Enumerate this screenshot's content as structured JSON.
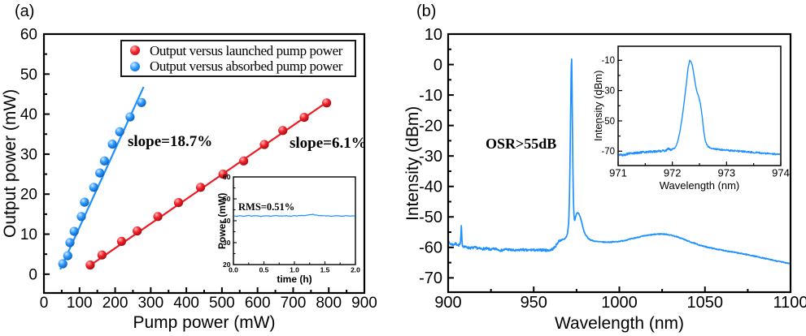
{
  "panel_a": {
    "label": "(a)"
  },
  "panel_b": {
    "label": "(b)"
  },
  "colors": {
    "red": "#ed1c24",
    "blue": "#1e90ff",
    "axis": "#000000",
    "background": "#ffffff"
  },
  "chart_data": [
    {
      "id": "a_main",
      "type": "scatter",
      "xlabel": "Pump power (mW)",
      "ylabel": "Output power (mW)",
      "xlim": [
        0,
        900
      ],
      "ylim": [
        0,
        60
      ],
      "x_ticks": [
        0,
        100,
        200,
        300,
        400,
        500,
        600,
        700,
        800,
        900
      ],
      "y_ticks": [
        0,
        10,
        20,
        30,
        40,
        50,
        60
      ],
      "grid": false,
      "legend_position": "top-center-inside",
      "legend": {
        "entries": [
          {
            "label": "Output versus launched pump power",
            "color": "red"
          },
          {
            "label": "Output versus absorbed pump power",
            "color": "blue"
          }
        ]
      },
      "annotations": [
        {
          "text": "slope=18.7%",
          "series": "absorbed"
        },
        {
          "text": "slope=6.1%",
          "series": "launched"
        }
      ],
      "series": [
        {
          "name": "Output versus launched pump power",
          "color": "red",
          "fit": [
            [
              122,
              1.7
            ],
            [
              800,
              43.3
            ]
          ],
          "points": [
            [
              130,
              2.3
            ],
            [
              163,
              4.8
            ],
            [
              218,
              8.2
            ],
            [
              262,
              10.8
            ],
            [
              320,
              14.4
            ],
            [
              378,
              17.9
            ],
            [
              440,
              21.7
            ],
            [
              503,
              25.0
            ],
            [
              561,
              28.3
            ],
            [
              619,
              32.4
            ],
            [
              671,
              35.9
            ],
            [
              731,
              39.2
            ],
            [
              794,
              42.8
            ]
          ]
        },
        {
          "name": "Output versus absorbed pump power",
          "color": "blue",
          "fit": [
            [
              46,
              1.2
            ],
            [
              280,
              46.8
            ]
          ],
          "points": [
            [
              53,
              2.6
            ],
            [
              67,
              4.6
            ],
            [
              73,
              7.9
            ],
            [
              85,
              10.7
            ],
            [
              105,
              14.4
            ],
            [
              114,
              18.0
            ],
            [
              140,
              21.7
            ],
            [
              157,
              25.3
            ],
            [
              170,
              28.3
            ],
            [
              192,
              32.5
            ],
            [
              213,
              35.6
            ],
            [
              242,
              39.3
            ],
            [
              274,
              42.9
            ]
          ]
        }
      ]
    },
    {
      "id": "a_inset",
      "type": "line",
      "xlabel": "time (h)",
      "ylabel": "Power (mW)",
      "annotation": "RMS=0.51%",
      "xlim": [
        0,
        2
      ],
      "ylim": [
        20,
        60
      ],
      "x_ticks": [
        "0.0",
        "0.5",
        "1.0",
        "1.5",
        "2.0"
      ],
      "y_ticks": [
        20,
        30,
        40,
        50,
        60
      ],
      "x_start": 0,
      "x_step": 0.05,
      "values": [
        42.2,
        42.0,
        42.3,
        42.1,
        42.2,
        42.4,
        42.1,
        42.3,
        42.2,
        42.0,
        42.2,
        42.3,
        42.1,
        42.2,
        42.4,
        42.2,
        42.1,
        42.3,
        42.2,
        42.1,
        42.3,
        42.2,
        42.4,
        42.3,
        42.5,
        42.8,
        42.9,
        42.6,
        42.4,
        42.3,
        42.2,
        42.3,
        42.1,
        42.2,
        42.3,
        42.2,
        42.1,
        42.3,
        42.2,
        42.2,
        42.1
      ],
      "noise": [
        [
          2.2,
          0.12
        ]
      ]
    },
    {
      "id": "b_main",
      "type": "line",
      "xlabel": "Wavelength (nm)",
      "ylabel": "Intensity (dBm)",
      "annotation": "OSR>55dB",
      "xlim": [
        900,
        1100
      ],
      "ylim": [
        -70,
        10
      ],
      "x_ticks": [
        900,
        950,
        1000,
        1050,
        1100
      ],
      "y_ticks": [
        10,
        0,
        -10,
        -20,
        -30,
        -40,
        -50,
        -60,
        -70
      ],
      "peak_wavelength_nm": 972,
      "peak_intensity_dbm": 2,
      "trace": [
        [
          900,
          -58.2
        ],
        [
          901.5,
          -58.9
        ],
        [
          903,
          -59.1
        ],
        [
          904.5,
          -58.8
        ],
        [
          906,
          -59.3
        ],
        [
          907.2,
          -58.9
        ],
        [
          907.7,
          -53.2
        ],
        [
          908.3,
          -59.4
        ],
        [
          910,
          -59.9
        ],
        [
          913,
          -60.2
        ],
        [
          916,
          -60.1
        ],
        [
          919,
          -60.5
        ],
        [
          922,
          -60.4
        ],
        [
          925,
          -60.7
        ],
        [
          928,
          -60.5
        ],
        [
          931,
          -61.0
        ],
        [
          934,
          -60.6
        ],
        [
          937,
          -60.9
        ],
        [
          940,
          -61.1
        ],
        [
          943,
          -60.7
        ],
        [
          946,
          -61.0
        ],
        [
          949,
          -60.8
        ],
        [
          952,
          -61.0
        ],
        [
          955,
          -60.8
        ],
        [
          958,
          -61.0
        ],
        [
          960,
          -60.8
        ],
        [
          961.5,
          -60.4
        ],
        [
          963,
          -59.4
        ],
        [
          964,
          -58.4
        ],
        [
          965,
          -57.8
        ],
        [
          966.5,
          -57.5
        ],
        [
          968,
          -57.2
        ],
        [
          969,
          -56.6
        ],
        [
          969.8,
          -55.2
        ],
        [
          970.4,
          -52
        ],
        [
          970.8,
          -45
        ],
        [
          971.2,
          -32
        ],
        [
          971.5,
          -18
        ],
        [
          971.8,
          -5
        ],
        [
          972.0,
          1.5
        ],
        [
          972.15,
          2.0
        ],
        [
          972.3,
          -3
        ],
        [
          972.6,
          -20
        ],
        [
          972.9,
          -36
        ],
        [
          973.2,
          -45
        ],
        [
          973.5,
          -49.5
        ],
        [
          973.8,
          -51.2
        ],
        [
          974.1,
          -50.9
        ],
        [
          974.5,
          -49.9
        ],
        [
          975,
          -49.0
        ],
        [
          975.6,
          -48.6
        ],
        [
          976.2,
          -48.8
        ],
        [
          977,
          -49.8
        ],
        [
          977.8,
          -51.3
        ],
        [
          978.6,
          -53.2
        ],
        [
          979.4,
          -54.8
        ],
        [
          980.4,
          -56.0
        ],
        [
          981.6,
          -56.9
        ],
        [
          983,
          -57.5
        ],
        [
          985,
          -57.9
        ],
        [
          987,
          -58.1
        ],
        [
          989,
          -58.2
        ],
        [
          992,
          -58.3
        ],
        [
          995,
          -58.25
        ],
        [
          998,
          -58.15
        ],
        [
          1001,
          -57.95
        ],
        [
          1004,
          -57.6
        ],
        [
          1007,
          -57.2
        ],
        [
          1010,
          -56.8
        ],
        [
          1013,
          -56.4
        ],
        [
          1016,
          -56.1
        ],
        [
          1019,
          -55.85
        ],
        [
          1022,
          -55.65
        ],
        [
          1025,
          -55.6
        ],
        [
          1028,
          -55.75
        ],
        [
          1031,
          -56.1
        ],
        [
          1034,
          -56.6
        ],
        [
          1037,
          -57.2
        ],
        [
          1040,
          -57.9
        ],
        [
          1043,
          -58.5
        ],
        [
          1046,
          -59.1
        ],
        [
          1049,
          -59.6
        ],
        [
          1052,
          -60.0
        ],
        [
          1056,
          -60.5
        ],
        [
          1060,
          -60.9
        ],
        [
          1064,
          -61.3
        ],
        [
          1068,
          -61.7
        ],
        [
          1072,
          -62.1
        ],
        [
          1076,
          -62.5
        ],
        [
          1080,
          -63.0
        ],
        [
          1084,
          -63.5
        ],
        [
          1088,
          -64.0
        ],
        [
          1092,
          -64.5
        ],
        [
          1096,
          -64.9
        ],
        [
          1100,
          -65.3
        ]
      ],
      "noise": [
        [
          966,
          0.4
        ],
        [
          1101,
          0.15
        ]
      ]
    },
    {
      "id": "b_inset",
      "type": "line",
      "xlabel": "Wavelength (nm)",
      "ylabel": "Intensity (dBm)",
      "xlim": [
        971,
        974
      ],
      "ylim": [
        -70,
        -10
      ],
      "x_ticks": [
        971,
        972,
        973,
        974
      ],
      "y_ticks": [
        -10,
        -30,
        -50,
        -70
      ],
      "peak_wavelength_nm": 972.3,
      "peak_intensity_dbm": -10,
      "trace": [
        [
          971.0,
          -72.2
        ],
        [
          971.1,
          -72.6
        ],
        [
          971.2,
          -71.6
        ],
        [
          971.3,
          -71.3
        ],
        [
          971.4,
          -70.9
        ],
        [
          971.5,
          -70.6
        ],
        [
          971.6,
          -70.3
        ],
        [
          971.7,
          -70.1
        ],
        [
          971.8,
          -69.8
        ],
        [
          971.88,
          -69.5
        ],
        [
          971.93,
          -68.4
        ],
        [
          971.98,
          -69.1
        ],
        [
          972.03,
          -68.2
        ],
        [
          972.07,
          -66.5
        ],
        [
          972.1,
          -63.5
        ],
        [
          972.14,
          -57
        ],
        [
          972.18,
          -48
        ],
        [
          972.22,
          -37
        ],
        [
          972.26,
          -25
        ],
        [
          972.29,
          -15
        ],
        [
          972.32,
          -10.2
        ],
        [
          972.34,
          -10.6
        ],
        [
          972.37,
          -13.5
        ],
        [
          972.4,
          -20
        ],
        [
          972.43,
          -27
        ],
        [
          972.46,
          -31.5
        ],
        [
          972.49,
          -34.5
        ],
        [
          972.52,
          -39
        ],
        [
          972.55,
          -47
        ],
        [
          972.58,
          -57
        ],
        [
          972.61,
          -63.5
        ],
        [
          972.65,
          -66.6
        ],
        [
          972.7,
          -67.9
        ],
        [
          972.78,
          -68.5
        ],
        [
          972.9,
          -69.0
        ],
        [
          973.0,
          -69.3
        ],
        [
          973.15,
          -69.8
        ],
        [
          973.3,
          -70.2
        ],
        [
          973.5,
          -70.8
        ],
        [
          973.7,
          -71.4
        ],
        [
          973.85,
          -71.8
        ],
        [
          974.0,
          -72.3
        ]
      ],
      "noise": [
        [
          972.05,
          0.7
        ],
        [
          972.62,
          0.18
        ],
        [
          974.2,
          0.55
        ]
      ]
    }
  ]
}
